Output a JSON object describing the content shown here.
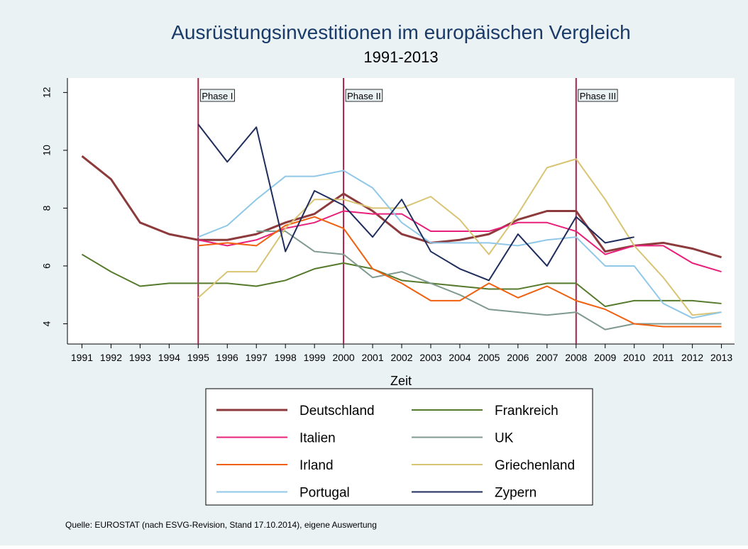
{
  "chart_data": {
    "type": "line",
    "title": "Ausrüstungsinvestitionen im europäischen Vergleich",
    "subtitle": "1991-2013",
    "x_label": "Zeit",
    "note": "Quelle:  EUROSTAT (nach ESVG-Revision, Stand 17.10.2014), eigene Auswertung",
    "x": [
      1991,
      1992,
      1993,
      1994,
      1995,
      1996,
      1997,
      1998,
      1999,
      2000,
      2001,
      2002,
      2003,
      2004,
      2005,
      2006,
      2007,
      2008,
      2009,
      2010,
      2011,
      2012,
      2013
    ],
    "xlim": [
      1990.5,
      2013.45
    ],
    "xticks": [
      1991,
      1992,
      1993,
      1994,
      1995,
      1996,
      1997,
      1998,
      1999,
      2000,
      2001,
      2002,
      2003,
      2004,
      2005,
      2006,
      2007,
      2008,
      2009,
      2010,
      2011,
      2012,
      2013
    ],
    "ylim": [
      3.3,
      12.5
    ],
    "yticks": [
      4,
      6,
      8,
      10,
      12
    ],
    "annotations": [
      {
        "x": 1995,
        "label": "Phase I"
      },
      {
        "x": 2000,
        "label": "Phase II"
      },
      {
        "x": 2008,
        "label": "Phase III"
      }
    ],
    "annotation_color": "#a3234a",
    "series": [
      {
        "name": "Deutschland",
        "color": "#8c3a3c",
        "values": [
          9.8,
          9.0,
          7.5,
          7.1,
          6.9,
          6.9,
          7.1,
          7.5,
          7.8,
          8.5,
          7.9,
          7.1,
          6.8,
          6.9,
          7.1,
          7.6,
          7.9,
          7.9,
          6.5,
          6.7,
          6.8,
          6.6,
          6.3
        ]
      },
      {
        "name": "Frankreich",
        "color": "#557a2c",
        "values": [
          6.4,
          5.8,
          5.3,
          5.4,
          5.4,
          5.4,
          5.3,
          5.5,
          5.9,
          6.1,
          5.9,
          5.5,
          5.4,
          5.3,
          5.2,
          5.2,
          5.4,
          5.4,
          4.6,
          4.8,
          4.8,
          4.8,
          4.7
        ]
      },
      {
        "name": "Italien",
        "color": "#e8207a",
        "values": [
          null,
          null,
          null,
          null,
          6.9,
          6.7,
          6.9,
          7.3,
          7.5,
          7.9,
          7.8,
          7.8,
          7.2,
          7.2,
          7.2,
          7.5,
          7.5,
          7.2,
          6.4,
          6.7,
          6.7,
          6.1,
          5.8
        ]
      },
      {
        "name": "UK",
        "color": "#7f9a8f",
        "values": [
          null,
          null,
          null,
          null,
          null,
          null,
          7.2,
          7.2,
          6.5,
          6.4,
          5.6,
          5.8,
          5.4,
          5.0,
          4.5,
          4.4,
          4.3,
          4.4,
          3.8,
          4.0,
          4.0,
          4.0,
          4.0
        ]
      },
      {
        "name": "Irland",
        "color": "#f0600f",
        "values": [
          null,
          null,
          null,
          null,
          6.7,
          6.8,
          6.7,
          7.4,
          7.7,
          7.3,
          5.9,
          5.4,
          4.8,
          4.8,
          5.4,
          4.9,
          5.3,
          4.8,
          4.5,
          4.0,
          3.9,
          3.9,
          3.9
        ]
      },
      {
        "name": "Griechenland",
        "color": "#d9c474",
        "values": [
          null,
          null,
          null,
          null,
          4.9,
          5.8,
          5.8,
          7.3,
          8.3,
          8.3,
          8.0,
          8.0,
          8.4,
          7.6,
          6.4,
          7.8,
          9.4,
          9.7,
          8.3,
          6.7,
          5.6,
          4.3,
          4.4
        ]
      },
      {
        "name": "Portugal",
        "color": "#90c8e8",
        "values": [
          null,
          null,
          null,
          null,
          7.0,
          7.4,
          8.3,
          9.1,
          9.1,
          9.3,
          8.7,
          7.5,
          6.8,
          6.8,
          6.8,
          6.7,
          6.9,
          7.0,
          6.0,
          6.0,
          4.7,
          4.2,
          4.4
        ]
      },
      {
        "name": "Zypern",
        "color": "#1e2d5c",
        "values": [
          null,
          null,
          null,
          null,
          10.9,
          9.6,
          10.8,
          6.5,
          8.6,
          8.1,
          7.0,
          8.3,
          6.5,
          5.9,
          5.5,
          7.1,
          6.0,
          7.7,
          6.8,
          7.0,
          null,
          null,
          null
        ]
      }
    ]
  }
}
